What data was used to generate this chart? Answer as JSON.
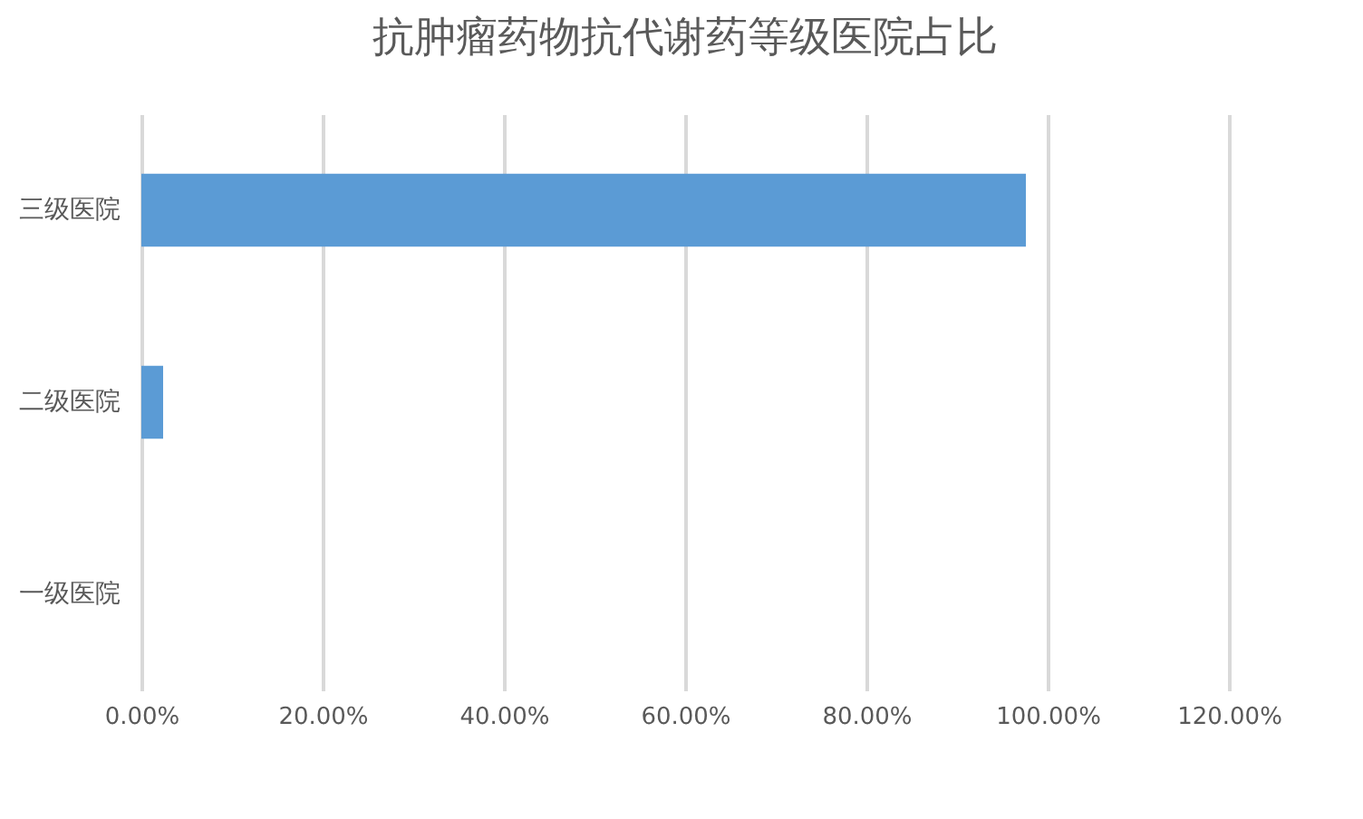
{
  "chart_data": {
    "type": "bar",
    "orientation": "horizontal",
    "title": "抗肿瘤药物抗代谢药等级医院占比",
    "categories": [
      "三级医院",
      "二级医院",
      "一级医院"
    ],
    "values": [
      97.6,
      2.4,
      0
    ],
    "color": "#5b9bd5",
    "xlim": [
      0,
      120
    ],
    "xticks": [
      {
        "value": 0,
        "label": "0.00%"
      },
      {
        "value": 20,
        "label": "20.00%"
      },
      {
        "value": 40,
        "label": "40.00%"
      },
      {
        "value": 60,
        "label": "60.00%"
      },
      {
        "value": 80,
        "label": "80.00%"
      },
      {
        "value": 100,
        "label": "100.00%"
      },
      {
        "value": 120,
        "label": "120.00%"
      }
    ],
    "grid": "x"
  }
}
